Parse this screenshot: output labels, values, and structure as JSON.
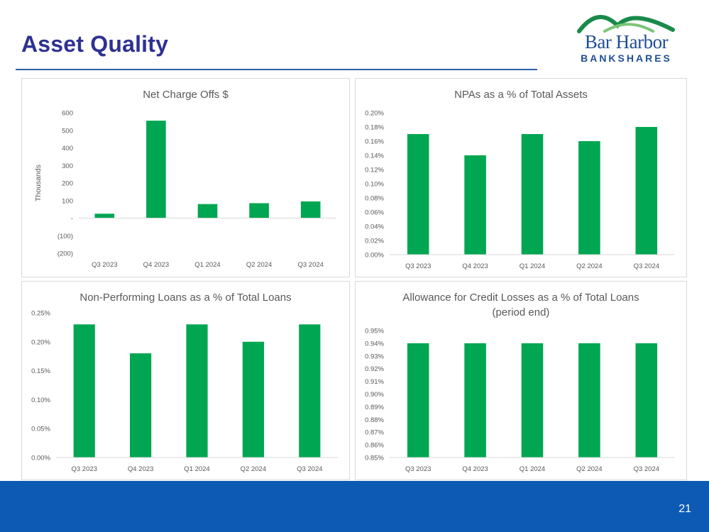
{
  "header": {
    "title": "Asset Quality"
  },
  "logo": {
    "line1": "Bar Harbor",
    "line2": "BANKSHARES"
  },
  "footer": {
    "page_number": "21"
  },
  "colors": {
    "bar": "#00a651",
    "title": "#2e3192",
    "footer": "#0d5ab5"
  },
  "chart_data": [
    {
      "type": "bar",
      "title": "Net Charge Offs $",
      "title_lines": [
        "Net Charge Offs $"
      ],
      "ylabel": "Thousands",
      "xlabel": "",
      "categories": [
        "Q3 2023",
        "Q4 2023",
        "Q1 2024",
        "Q2 2024",
        "Q3 2024"
      ],
      "values": [
        25,
        555,
        80,
        85,
        95
      ],
      "ylim": [
        -200,
        600
      ],
      "yticks": [
        -200,
        -100,
        0,
        100,
        200,
        300,
        400,
        500,
        600
      ],
      "ytick_labels": [
        "(200)",
        "(100)",
        "-",
        "100",
        "200",
        "300",
        "400",
        "500",
        "600"
      ],
      "gridlines": false
    },
    {
      "type": "bar",
      "title": "NPAs as a % of Total Assets",
      "title_lines": [
        "NPAs as a % of Total Assets"
      ],
      "ylabel": "",
      "xlabel": "",
      "categories": [
        "Q3 2023",
        "Q4 2023",
        "Q1 2024",
        "Q2 2024",
        "Q3 2024"
      ],
      "values": [
        0.17,
        0.14,
        0.17,
        0.16,
        0.18
      ],
      "ylim": [
        0,
        0.2
      ],
      "yticks": [
        0,
        0.02,
        0.04,
        0.06,
        0.08,
        0.1,
        0.12,
        0.14,
        0.16,
        0.18,
        0.2
      ],
      "ytick_labels": [
        "0.00%",
        "0.02%",
        "0.04%",
        "0.06%",
        "0.08%",
        "0.10%",
        "0.12%",
        "0.14%",
        "0.16%",
        "0.18%",
        "0.20%"
      ],
      "gridlines": false
    },
    {
      "type": "bar",
      "title": "Non-Performing Loans as a % of Total Loans",
      "title_lines": [
        "Non-Performing Loans as a % of Total Loans"
      ],
      "ylabel": "",
      "xlabel": "",
      "categories": [
        "Q3 2023",
        "Q4 2023",
        "Q1 2024",
        "Q2 2024",
        "Q3 2024"
      ],
      "values": [
        0.23,
        0.18,
        0.23,
        0.2,
        0.23
      ],
      "ylim": [
        0,
        0.25
      ],
      "yticks": [
        0,
        0.05,
        0.1,
        0.15,
        0.2,
        0.25
      ],
      "ytick_labels": [
        "0.00%",
        "0.05%",
        "0.10%",
        "0.15%",
        "0.20%",
        "0.25%"
      ],
      "gridlines": false
    },
    {
      "type": "bar",
      "title": "Allowance for Credit Losses as a % of Total Loans (period end)",
      "title_lines": [
        "Allowance for Credit Losses as a % of Total Loans",
        "(period end)"
      ],
      "ylabel": "",
      "xlabel": "",
      "categories": [
        "Q3 2023",
        "Q4 2023",
        "Q1 2024",
        "Q2 2024",
        "Q3 2024"
      ],
      "values": [
        0.94,
        0.94,
        0.94,
        0.94,
        0.94
      ],
      "ylim": [
        0.85,
        0.95
      ],
      "yticks": [
        0.85,
        0.86,
        0.87,
        0.88,
        0.89,
        0.9,
        0.91,
        0.92,
        0.93,
        0.94,
        0.95
      ],
      "ytick_labels": [
        "0.85%",
        "0.86%",
        "0.87%",
        "0.88%",
        "0.89%",
        "0.90%",
        "0.91%",
        "0.92%",
        "0.93%",
        "0.94%",
        "0.95%"
      ],
      "gridlines": false
    }
  ]
}
